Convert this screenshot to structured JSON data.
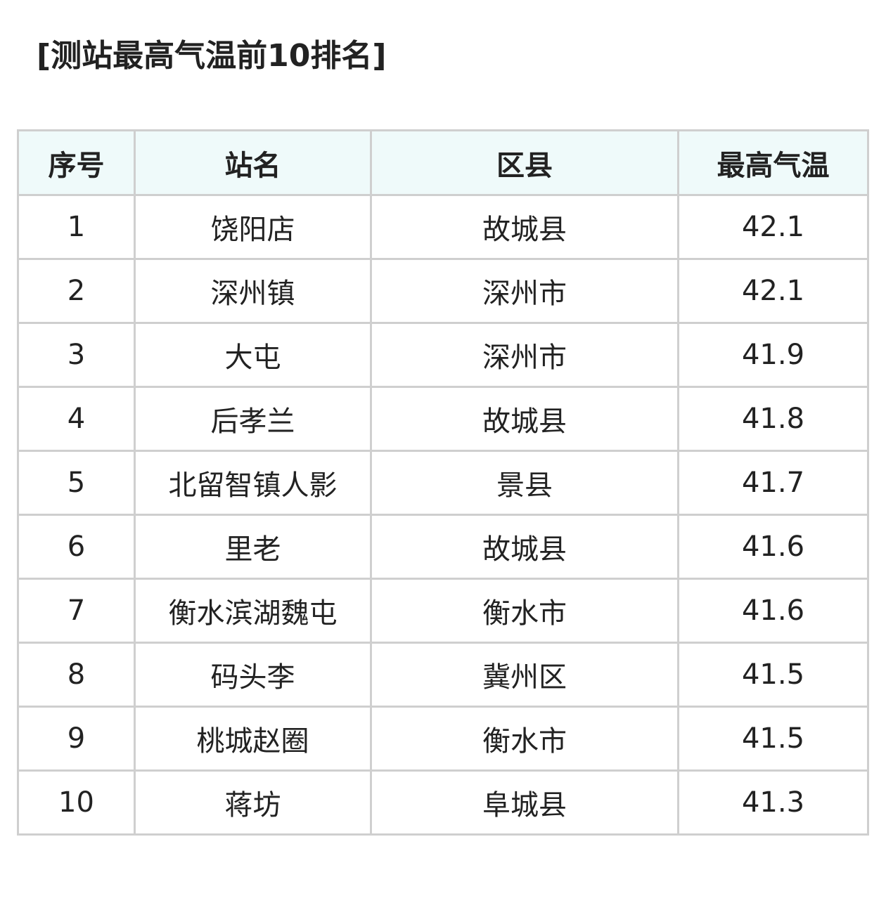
{
  "title": "[测站最高气温前10排名]",
  "table": {
    "headers": [
      "序号",
      "站名",
      "区县",
      "最高气温"
    ],
    "rows": [
      [
        "1",
        "饶阳店",
        "故城县",
        "42.1"
      ],
      [
        "2",
        "深州镇",
        "深州市",
        "42.1"
      ],
      [
        "3",
        "大屯",
        "深州市",
        "41.9"
      ],
      [
        "4",
        "后孝兰",
        "故城县",
        "41.8"
      ],
      [
        "5",
        "北留智镇人影",
        "景县",
        "41.7"
      ],
      [
        "6",
        "里老",
        "故城县",
        "41.6"
      ],
      [
        "7",
        "衡水滨湖魏屯",
        "衡水市",
        "41.6"
      ],
      [
        "8",
        "码头李",
        "冀州区",
        "41.5"
      ],
      [
        "9",
        "桃城赵圈",
        "衡水市",
        "41.5"
      ],
      [
        "10",
        "蒋坊",
        "阜城县",
        "41.3"
      ]
    ]
  },
  "colors": {
    "header_bg": "#effafa",
    "border": "#cfcfcf"
  }
}
